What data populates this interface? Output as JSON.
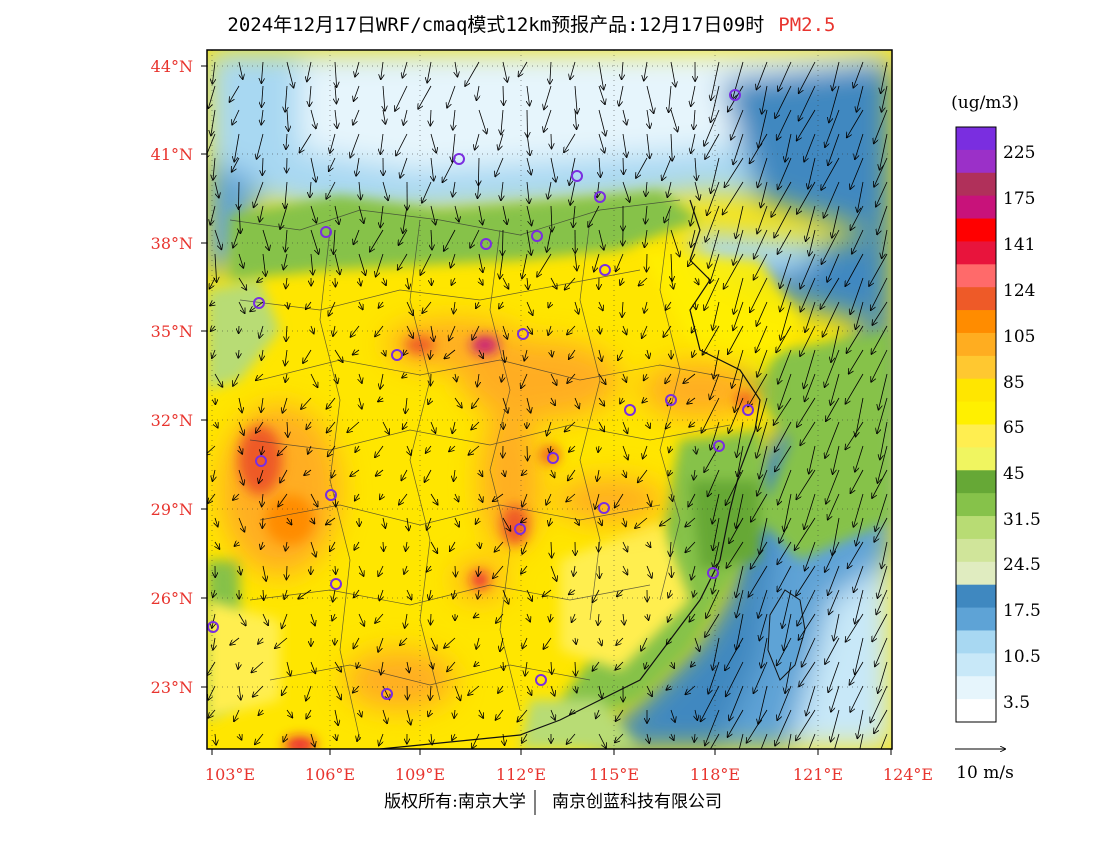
{
  "title": {
    "text": "2024年12月17日WRF/cmaq模式12km预报产品:12月17日09时",
    "pollutant": "PM2.5",
    "pollutant_color": "#e8342e"
  },
  "axes": {
    "lat_labels": [
      "44°N",
      "41°N",
      "38°N",
      "35°N",
      "32°N",
      "29°N",
      "26°N",
      "23°N"
    ],
    "lon_labels": [
      "103°E",
      "106°E",
      "109°E",
      "112°E",
      "115°E",
      "118°E",
      "121°E",
      "124°E"
    ],
    "label_color": "#e8342e"
  },
  "legend": {
    "unit": "(ug/m3)",
    "labels": [
      "225",
      "175",
      "141",
      "124",
      "105",
      "85",
      "65",
      "45",
      "31.5",
      "24.5",
      "17.5",
      "10.5",
      "3.5"
    ],
    "colors": [
      "#7a2ee0",
      "#9b30c8",
      "#b0305a",
      "#c8127a",
      "#ff0000",
      "#e8143c",
      "#ff6a6a",
      "#ee5a28",
      "#ff8c00",
      "#ffad20",
      "#ffc830",
      "#ffe600",
      "#fff000",
      "#ffee50",
      "#f0f560",
      "#66a836",
      "#86c24a",
      "#b8dc74",
      "#d0e59a",
      "#e0ecc0",
      "#3f88c0",
      "#5ea3d6",
      "#a8d8f2",
      "#c8e8f8",
      "#e6f5fc",
      "#ffffff"
    ]
  },
  "wind": {
    "scale_label": "10 m/s"
  },
  "footer": {
    "copyright": "版权所有:南京大学",
    "company": "南京创蓝科技有限公司"
  }
}
